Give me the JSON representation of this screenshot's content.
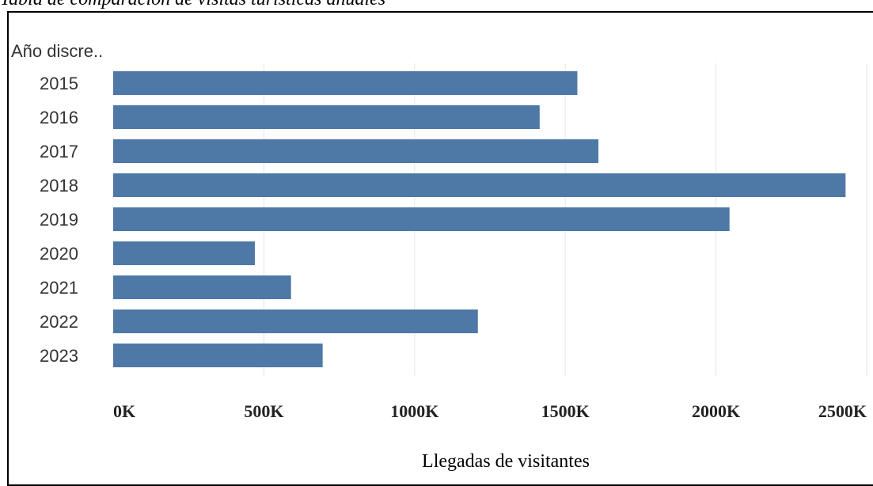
{
  "caption": "Tabla de comparación de visitas turísticas anuales",
  "colors": {
    "bar": "#4e79a7",
    "grid": "#e6e6e6"
  },
  "chart_data": {
    "type": "bar",
    "orientation": "horizontal",
    "row_header": "Año discre..",
    "categories": [
      "2015",
      "2016",
      "2017",
      "2018",
      "2019",
      "2020",
      "2021",
      "2022",
      "2023"
    ],
    "values": [
      1540000,
      1415000,
      1610000,
      2430000,
      2045000,
      470000,
      590000,
      1210000,
      695000
    ],
    "xlabel": "Llegadas de visitantes",
    "xlim": [
      0,
      2500000
    ],
    "xticks": [
      0,
      500000,
      1000000,
      1500000,
      2000000,
      2500000
    ],
    "xtick_labels": [
      "0K",
      "500K",
      "1000K",
      "1500K",
      "2000K",
      "2500K"
    ],
    "grid": "vertical"
  }
}
